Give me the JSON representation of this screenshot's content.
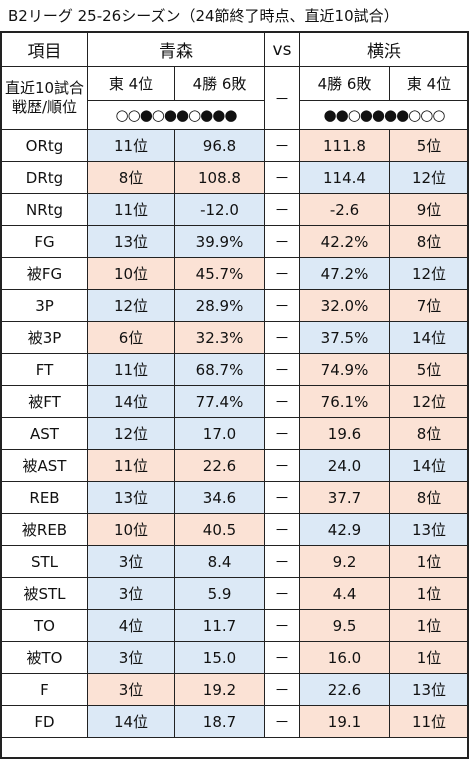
{
  "title": "B2リーグ 25-26シーズン（24節終了時点、直近10試合）",
  "header": {
    "col_label": "項目",
    "left_team": "青森",
    "vs": "vs",
    "right_team": "横浜"
  },
  "record_row": {
    "label_line1": "直近10試合",
    "label_line2": "戦歴/順位",
    "left_standing": "東 4位",
    "left_record": "4勝 6敗",
    "dash": "－",
    "right_record": "4勝 6敗",
    "right_standing": "東 4位",
    "left_form": "○○●○●●○●●●",
    "right_form": "●●○●●●●○○○"
  },
  "colors": {
    "blue": "#dce9f6",
    "pink": "#fbe2d5"
  },
  "rows": [
    {
      "label": "ORtg",
      "left_rank": "11位",
      "left_value": "96.8",
      "dash": "－",
      "right_value": "111.8",
      "right_rank": "5位"
    },
    {
      "label": "DRtg",
      "left_rank": "8位",
      "left_value": "108.8",
      "dash": "－",
      "right_value": "114.4",
      "right_rank": "12位"
    },
    {
      "label": "NRtg",
      "left_rank": "11位",
      "left_value": "-12.0",
      "dash": "－",
      "right_value": "-2.6",
      "right_rank": "9位"
    },
    {
      "label": "FG",
      "left_rank": "13位",
      "left_value": "39.9%",
      "dash": "－",
      "right_value": "42.2%",
      "right_rank": "8位"
    },
    {
      "label": "被FG",
      "left_rank": "10位",
      "left_value": "45.7%",
      "dash": "－",
      "right_value": "47.2%",
      "right_rank": "12位"
    },
    {
      "label": "3P",
      "left_rank": "12位",
      "left_value": "28.9%",
      "dash": "－",
      "right_value": "32.0%",
      "right_rank": "7位"
    },
    {
      "label": "被3P",
      "left_rank": "6位",
      "left_value": "32.3%",
      "dash": "－",
      "right_value": "37.5%",
      "right_rank": "14位"
    },
    {
      "label": "FT",
      "left_rank": "11位",
      "left_value": "68.7%",
      "dash": "－",
      "right_value": "74.9%",
      "right_rank": "5位"
    },
    {
      "label": "被FT",
      "left_rank": "14位",
      "left_value": "77.4%",
      "dash": "－",
      "right_value": "76.1%",
      "right_rank": "12位"
    },
    {
      "label": "AST",
      "left_rank": "12位",
      "left_value": "17.0",
      "dash": "－",
      "right_value": "19.6",
      "right_rank": "8位"
    },
    {
      "label": "被AST",
      "left_rank": "11位",
      "left_value": "22.6",
      "dash": "－",
      "right_value": "24.0",
      "right_rank": "14位"
    },
    {
      "label": "REB",
      "left_rank": "13位",
      "left_value": "34.6",
      "dash": "－",
      "right_value": "37.7",
      "right_rank": "8位"
    },
    {
      "label": "被REB",
      "left_rank": "10位",
      "left_value": "40.5",
      "dash": "－",
      "right_value": "42.9",
      "right_rank": "13位"
    },
    {
      "label": "STL",
      "left_rank": "3位",
      "left_value": "8.4",
      "dash": "－",
      "right_value": "9.2",
      "right_rank": "1位"
    },
    {
      "label": "被STL",
      "left_rank": "3位",
      "left_value": "5.9",
      "dash": "－",
      "right_value": "4.4",
      "right_rank": "1位"
    },
    {
      "label": "TO",
      "left_rank": "4位",
      "left_value": "11.7",
      "dash": "－",
      "right_value": "9.5",
      "right_rank": "1位"
    },
    {
      "label": "被TO",
      "left_rank": "3位",
      "left_value": "15.0",
      "dash": "－",
      "right_value": "16.0",
      "right_rank": "1位"
    },
    {
      "label": "F",
      "left_rank": "3位",
      "left_value": "19.2",
      "dash": "－",
      "right_value": "22.6",
      "right_rank": "13位"
    },
    {
      "label": "FD",
      "left_rank": "14位",
      "left_value": "18.7",
      "dash": "－",
      "right_value": "19.1",
      "right_rank": "11位"
    }
  ],
  "row_shading": [
    {
      "left": "blue",
      "right": "pink"
    },
    {
      "left": "pink",
      "right": "blue"
    },
    {
      "left": "blue",
      "right": "pink"
    },
    {
      "left": "blue",
      "right": "pink"
    },
    {
      "left": "pink",
      "right": "blue"
    },
    {
      "left": "blue",
      "right": "pink"
    },
    {
      "left": "pink",
      "right": "blue"
    },
    {
      "left": "blue",
      "right": "pink"
    },
    {
      "left": "blue",
      "right": "pink"
    },
    {
      "left": "blue",
      "right": "pink"
    },
    {
      "left": "pink",
      "right": "blue"
    },
    {
      "left": "blue",
      "right": "pink"
    },
    {
      "left": "pink",
      "right": "blue"
    },
    {
      "left": "blue",
      "right": "pink"
    },
    {
      "left": "blue",
      "right": "pink"
    },
    {
      "left": "blue",
      "right": "pink"
    },
    {
      "left": "blue",
      "right": "pink"
    },
    {
      "left": "pink",
      "right": "blue"
    },
    {
      "left": "blue",
      "right": "pink"
    }
  ]
}
